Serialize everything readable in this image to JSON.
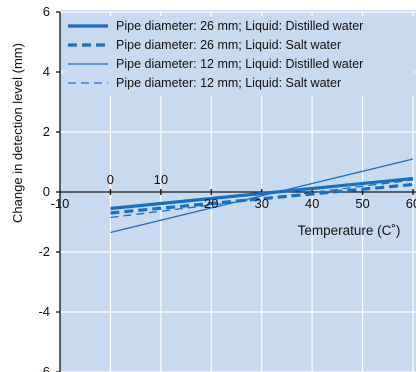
{
  "chart_data": {
    "type": "line",
    "title": "",
    "ylabel": "Change in detection level (mm)",
    "xlabel": "Temperature (C˚)",
    "xlim": [
      -10,
      60
    ],
    "ylim": [
      -6,
      6
    ],
    "x_ticks_upper": [
      "0",
      "10"
    ],
    "x_ticks_lower": [
      "-10",
      "20",
      "30",
      "40",
      "50",
      "60"
    ],
    "y_ticks": [
      "6",
      "4",
      "2",
      "0",
      "-2",
      "-4",
      "-6"
    ],
    "grid": true,
    "legend_position": "top",
    "series": [
      {
        "name": "Pipe diameter: 26 mm; Liquid: Distilled water",
        "x": [
          0,
          60
        ],
        "y": [
          -0.55,
          0.45
        ],
        "color": "#1a6fc0",
        "style": "solid-thick"
      },
      {
        "name": "Pipe diameter: 26 mm; Liquid: Salt water",
        "x": [
          0,
          60
        ],
        "y": [
          -0.7,
          0.25
        ],
        "color": "#1a6fc0",
        "style": "dashed-thick"
      },
      {
        "name": "Pipe diameter: 12 mm; Liquid: Distilled water",
        "x": [
          0,
          60
        ],
        "y": [
          -1.35,
          1.1
        ],
        "color": "#1a6fc0",
        "style": "solid-thin"
      },
      {
        "name": "Pipe diameter: 12 mm; Liquid: Salt water",
        "x": [
          0,
          60
        ],
        "y": [
          -0.85,
          0.4
        ],
        "color": "#1a6fc0",
        "style": "dashed-thin"
      }
    ]
  }
}
